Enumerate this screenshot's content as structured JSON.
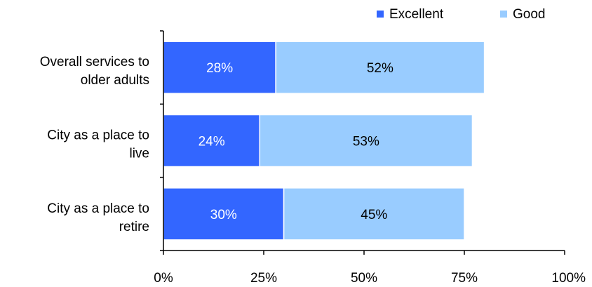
{
  "chart_data": {
    "type": "bar",
    "orientation": "horizontal",
    "stacked": true,
    "categories": [
      [
        "Overall services to",
        "older adults"
      ],
      [
        "City as a place to",
        "live"
      ],
      [
        "City as a place to",
        "retire"
      ]
    ],
    "series": [
      {
        "name": "Excellent",
        "values": [
          28,
          24,
          30
        ],
        "labels": [
          "28%",
          "24%",
          "30%"
        ],
        "color": "#3366ff"
      },
      {
        "name": "Good",
        "values": [
          52,
          53,
          45
        ],
        "labels": [
          "52%",
          "53%",
          "45%"
        ],
        "color": "#99ccff"
      }
    ],
    "xlim": [
      0,
      100
    ],
    "xticks": [
      "0%",
      "25%",
      "50%",
      "75%",
      "100%"
    ],
    "xtick_values": [
      0,
      25,
      50,
      75,
      100
    ],
    "grid": false,
    "legend": {
      "placement": "top-right"
    },
    "axis_color": "#000000",
    "excellent_label_color": "#ffffff",
    "good_label_color": "#000000"
  }
}
